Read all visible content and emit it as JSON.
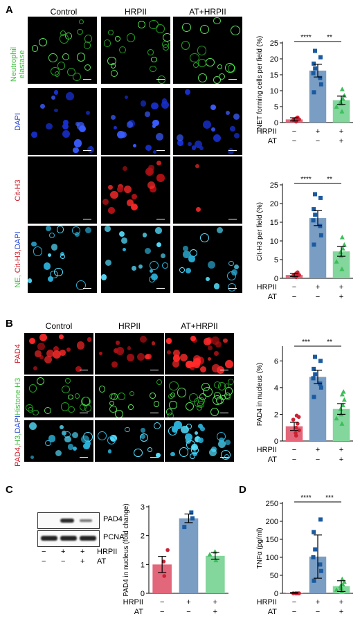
{
  "panel_letters": {
    "a": "A",
    "b": "B",
    "c": "C",
    "d": "D"
  },
  "section_a": {
    "columns": [
      "Control",
      "HRPII",
      "AT+HRPII"
    ],
    "rows": [
      {
        "label_lines": [
          "Neutrophil",
          "elastase"
        ],
        "colors": [
          "#3fbf3f",
          "#3fbf3f"
        ],
        "stain": "green"
      },
      {
        "label_lines": [
          "DAPI"
        ],
        "colors": [
          "#2b4bd8"
        ],
        "stain": "blue"
      },
      {
        "label_lines": [
          "Cit-H3"
        ],
        "colors": [
          "#d0202e"
        ],
        "stain": "red"
      },
      {
        "label_lines": [
          "NE, ",
          "Cit-H3,",
          "DAPI"
        ],
        "colors": [
          "#3fbf3f",
          "#d0202e",
          "#2b4bd8"
        ],
        "stain": "merge"
      }
    ]
  },
  "section_b": {
    "columns": [
      "Control",
      "HRPII",
      "AT+HRPII"
    ],
    "rows": [
      {
        "label_lines": [
          "PAD4"
        ],
        "colors": [
          "#d0202e"
        ],
        "stain": "red"
      },
      {
        "label_lines": [
          "Histone H3"
        ],
        "colors": [
          "#3fbf3f"
        ],
        "stain": "green"
      },
      {
        "label_lines": [
          "PAD4,",
          "H3,",
          "DAPI"
        ],
        "colors": [
          "#d0202e",
          "#3fbf3f",
          "#2b4bd8"
        ],
        "stain": "merge"
      }
    ]
  },
  "blot": {
    "bands": [
      "PAD4",
      "PCNA"
    ],
    "row_labels": [
      "HRPII",
      "AT"
    ],
    "signs": [
      [
        "−",
        "+",
        "+"
      ],
      [
        "−",
        "−",
        "+"
      ]
    ]
  },
  "condition_labels": {
    "hrp": "HRPII",
    "at": "AT"
  },
  "condition_signs": {
    "hrp": [
      "−",
      "+",
      "+"
    ],
    "at": [
      "−",
      "−",
      "+"
    ]
  },
  "colors": {
    "control": "#e3677a",
    "hrpii": "#7a9dc4",
    "at": "#83d69c",
    "control_dot": "#cc2233",
    "hrpii_dot": "#1a5aa0",
    "at_dot": "#3cbe5a"
  },
  "chart_data": [
    {
      "type": "bar",
      "id": "net",
      "ylabel": "NET forming cells per field (%)",
      "ylim": [
        0,
        25
      ],
      "yticks": [
        0,
        5,
        10,
        15,
        20,
        25
      ],
      "categories": [
        "Control",
        "HRPII",
        "AT+HRPII"
      ],
      "values": [
        1.0,
        16.3,
        7.0
      ],
      "errors": [
        0.5,
        2.0,
        1.3
      ],
      "points": [
        [
          0.3,
          0.7,
          1.0,
          1.3,
          1.6,
          0.8
        ],
        [
          9.5,
          12,
          14,
          15.5,
          17,
          18.5,
          20.5,
          22.5
        ],
        [
          3.5,
          5,
          6,
          6.5,
          7.5,
          8.5,
          10.5
        ]
      ],
      "significance": [
        {
          "pair": [
            0,
            1
          ],
          "label": "****"
        },
        {
          "pair": [
            1,
            2
          ],
          "label": "**"
        }
      ]
    },
    {
      "type": "bar",
      "id": "cith3",
      "ylabel": "Cit-H3 per field (%)",
      "ylim": [
        0,
        25
      ],
      "yticks": [
        0,
        5,
        10,
        15,
        20,
        25
      ],
      "categories": [
        "Control",
        "HRPII",
        "AT+HRPII"
      ],
      "values": [
        0.9,
        16.1,
        7.2
      ],
      "errors": [
        0.4,
        2.0,
        1.3
      ],
      "points": [
        [
          0.3,
          0.6,
          0.9,
          1.3,
          1.6,
          0.7
        ],
        [
          9,
          11.5,
          14,
          15.5,
          17,
          18.5,
          21.5,
          22.5
        ],
        [
          2.5,
          4.5,
          6,
          7,
          8,
          9,
          11
        ]
      ],
      "significance": [
        {
          "pair": [
            0,
            1
          ],
          "label": "****"
        },
        {
          "pair": [
            1,
            2
          ],
          "label": "**"
        }
      ]
    },
    {
      "type": "bar",
      "id": "pad4",
      "ylabel": "PAD4 in nucleus (%)",
      "ylim": [
        0,
        7
      ],
      "yticks": [
        0,
        2,
        4,
        6
      ],
      "categories": [
        "Control",
        "HRPII",
        "AT+HRPII"
      ],
      "values": [
        1.1,
        4.8,
        2.4
      ],
      "errors": [
        0.3,
        0.5,
        0.4
      ],
      "points": [
        [
          0.4,
          0.6,
          0.8,
          1.0,
          1.3,
          1.6,
          1.8,
          1.9
        ],
        [
          3.3,
          4.0,
          4.3,
          4.7,
          5.0,
          5.4,
          6.0,
          6.3
        ],
        [
          1.3,
          1.7,
          2.0,
          2.4,
          2.7,
          3.1,
          3.5,
          3.7
        ]
      ],
      "significance": [
        {
          "pair": [
            0,
            1
          ],
          "label": "***"
        },
        {
          "pair": [
            1,
            2
          ],
          "label": "**"
        }
      ]
    },
    {
      "type": "bar",
      "id": "pad4blot",
      "ylabel": "PAD4 in nucleus (fold change)",
      "ylim": [
        0,
        3
      ],
      "yticks": [
        0,
        1,
        2,
        3
      ],
      "categories": [
        "Control",
        "HRPII",
        "AT+HRPII"
      ],
      "values": [
        1.0,
        2.6,
        1.3
      ],
      "errors": [
        0.28,
        0.15,
        0.12
      ],
      "points": [
        [
          0.6,
          1.1,
          1.5
        ],
        [
          2.3,
          2.6,
          2.8
        ],
        [
          1.15,
          1.35,
          1.45
        ]
      ],
      "significance": []
    },
    {
      "type": "bar",
      "id": "tnf",
      "ylabel": "TNFα (pg/ml)",
      "ylim": [
        0,
        250
      ],
      "yticks": [
        0,
        50,
        100,
        150,
        200,
        250
      ],
      "categories": [
        "Control",
        "HRPII",
        "AT+HRPII"
      ],
      "values": [
        1,
        102,
        20
      ],
      "errors": [
        1,
        60,
        15
      ],
      "points": [
        [
          0,
          0,
          0,
          0,
          0,
          0,
          0
        ],
        [
          35,
          62,
          80,
          100,
          122,
          170,
          205
        ],
        [
          5,
          10,
          15,
          20,
          25,
          32,
          40
        ]
      ],
      "significance": [
        {
          "pair": [
            0,
            1
          ],
          "label": "****"
        },
        {
          "pair": [
            1,
            2
          ],
          "label": "***"
        }
      ]
    }
  ]
}
